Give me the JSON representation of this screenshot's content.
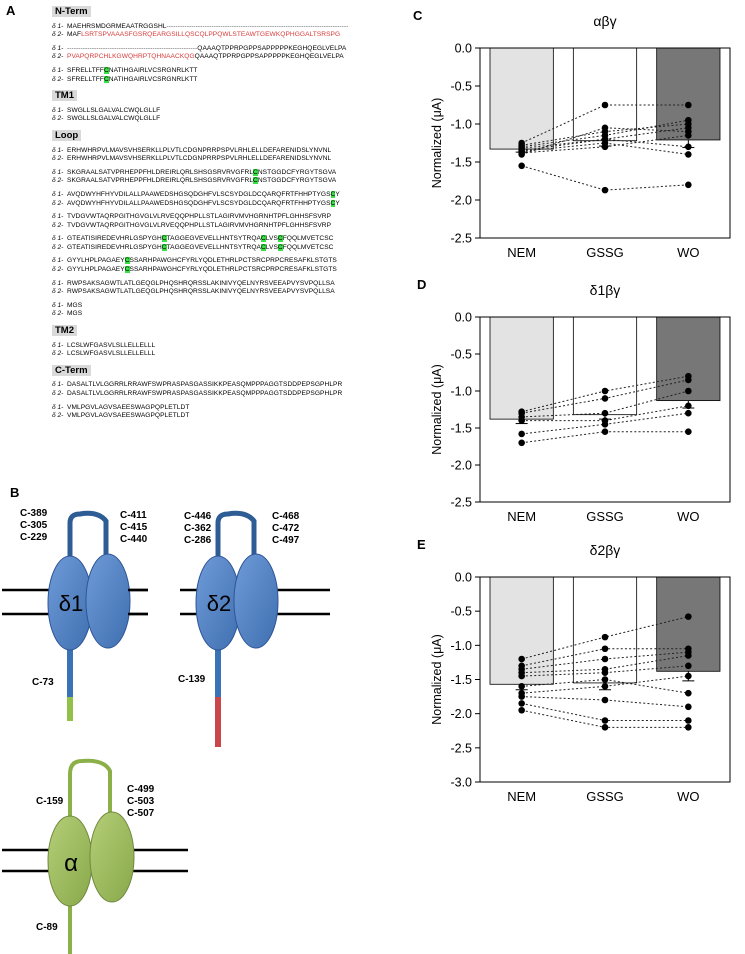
{
  "panels": {
    "a": "A",
    "b": "B",
    "c": "C",
    "d": "D",
    "e": "E"
  },
  "sequence": {
    "labels": {
      "d1": "δ 1-",
      "d2": "δ 2-"
    },
    "sections": [
      {
        "title": "N-Term",
        "blocks": [
          {
            "d1": [
              {
                "t": "MAEHRSMDGRMEAATRGGSHL"
              },
              {
                "t": "---------------------------------------------------------------------------------",
                "c": "dash"
              }
            ],
            "d2": [
              {
                "t": "MAF"
              },
              {
                "t": "LSRTSPVAAASFGSRQEARGSILLQSCQLPPQWLSTEAWTGEWKQPHGGALTSRSPG",
                "c": "red"
              }
            ]
          },
          {
            "d1": [
              {
                "t": "----------------------------------------------------------",
                "c": "dash"
              },
              {
                "t": "QAAAQTPPRPGPPSAPPPPPKEGHQEGLVELPA"
              }
            ],
            "d2": [
              {
                "t": "PVAPQRPCHLKGWQHRPTQHNAACKQG",
                "c": "red"
              },
              {
                "t": "QAAAQTPPRPGPPSAPPPPPKEGHQEGLVELPA"
              }
            ]
          },
          {
            "d1": [
              {
                "t": "SFRELLTFF"
              },
              {
                "t": "C",
                "c": "hl"
              },
              {
                "t": "NATIHGAIRLVCSRGNRLKTT"
              }
            ],
            "d2": [
              {
                "t": "SFRELLTFF"
              },
              {
                "t": "C",
                "c": "hl"
              },
              {
                "t": "NATIHGAIRLVCSRGNRLKTT"
              }
            ]
          }
        ]
      },
      {
        "title": "TM1",
        "blocks": [
          {
            "d1": [
              {
                "t": "SWGLLSLGALVALCWQLGLLF"
              }
            ],
            "d2": [
              {
                "t": "SWGLLSLGALVALCWQLGLLF"
              }
            ]
          }
        ]
      },
      {
        "title": "Loop",
        "blocks": [
          {
            "d1": [
              {
                "t": "ERHWHRPVLMAVSVHSERKLLPLVTLCDGNPRRPSPVLRHLELLDEFARENIDSLYNVNL"
              }
            ],
            "d2": [
              {
                "t": "ERHWHRPVLMAVSVHSERKLLPLVTLCDGNPRRPSPVLRHLELLDEFARENIDSLYNVNL"
              }
            ]
          },
          {
            "d1": [
              {
                "t": "SKGRAALSATVPRHEPPFHLDREIRLQRLSHSGSRVRVGFRL"
              },
              {
                "t": "C",
                "c": "hl"
              },
              {
                "t": "NSTGGDCFYRGYTSGVA"
              }
            ],
            "d2": [
              {
                "t": "SKGRAALSATVPRHEPPFHLDREIRLQRLSHSGSRVRVGFRL"
              },
              {
                "t": "C",
                "c": "hl"
              },
              {
                "t": "NSTGGDCFYRGYTSGVA"
              }
            ]
          },
          {
            "d1": [
              {
                "t": "AVQDWYHFHYVDILALLPAAWEDSHGSQDGHFVLSCSYDGLDCQARQFRTFHHPTYGS"
              },
              {
                "t": "C",
                "c": "hl"
              },
              {
                "t": "Y"
              }
            ],
            "d2": [
              {
                "t": "AVQDWYHFHYVDILALLPAAWEDSHGSQDGHFVLSCSYDGLDCQARQFRTFHHPTYGS"
              },
              {
                "t": "C",
                "c": "hl"
              },
              {
                "t": "Y"
              }
            ]
          },
          {
            "d1": [
              {
                "t": "TVDGVWTAQRPGITHGVGLVLRVEQQPHPLLSTLAGIRVMVHGRNHTPFLGHHSFSVRP"
              }
            ],
            "d2": [
              {
                "t": "TVDGVWTAQRPGITHGVGLVLRVEQQPHPLLSTLAGIRVMVHGRNHTPFLGHHSFSVRP"
              }
            ]
          },
          {
            "d1": [
              {
                "t": "GTEATISIREDEVHRLGSPYGH"
              },
              {
                "t": "C",
                "c": "hl"
              },
              {
                "t": "TAGGEGVEVELLHNTSYTRQA"
              },
              {
                "t": "C",
                "c": "hl"
              },
              {
                "t": "LVS"
              },
              {
                "t": "C",
                "c": "hl"
              },
              {
                "t": "FQQLMVETCSC"
              }
            ],
            "d2": [
              {
                "t": "GTEATISIREDEVHRLGSPYGH"
              },
              {
                "t": "C",
                "c": "hl"
              },
              {
                "t": "TAGGEGVEVELLHNTSYTRQA"
              },
              {
                "t": "C",
                "c": "hl"
              },
              {
                "t": "LVS"
              },
              {
                "t": "C",
                "c": "hl"
              },
              {
                "t": "FQQLMVETCSC"
              }
            ]
          },
          {
            "d1": [
              {
                "t": "GYYLHPLPAGAEY"
              },
              {
                "t": "C",
                "c": "hl"
              },
              {
                "t": "SSARHPAWGHCFYRLYQDLETHRLPCTSRCPRPCRESAFKLSTGTS"
              }
            ],
            "d2": [
              {
                "t": "GYYLHPLPAGAEY"
              },
              {
                "t": "C",
                "c": "hl"
              },
              {
                "t": "SSARHPAWGHCFYRLYQDLETHRLPCTSRCPRPCRESAFKLSTGTS"
              }
            ]
          },
          {
            "d1": [
              {
                "t": "RWPSAKSAGWTLATLGEQGLPHQSHRQRSSLAKINIVYQELNYRSVEEAPVYSVPQLLSA"
              }
            ],
            "d2": [
              {
                "t": "RWPSAKSAGWTLATLGEQGLPHQSHRQRSSLAKINIVYQELNYRSVEEAPVYSVPQLLSA"
              }
            ]
          },
          {
            "d1": [
              {
                "t": "MGS"
              }
            ],
            "d2": [
              {
                "t": "MGS"
              }
            ]
          }
        ]
      },
      {
        "title": "TM2",
        "blocks": [
          {
            "d1": [
              {
                "t": "LCSLWFGASVLSLLELLELLL"
              }
            ],
            "d2": [
              {
                "t": "LCSLWFGASVLSLLELLELLL"
              }
            ]
          }
        ]
      },
      {
        "title": "C-Term",
        "blocks": [
          {
            "d1": [
              {
                "t": "DASALTLVLGGRRLRRAWFSWPRASPASGASSIKKPEASQMPPPAGGTSDDPEPSGPHLPR"
              }
            ],
            "d2": [
              {
                "t": "DASALTLVLGGRRLRRAWFSWPRASPASGASSIKKPEASQMPPPAGGTSDDPEPSGPHLPR"
              }
            ]
          },
          {
            "d1": [
              {
                "t": "VMLPGVLAGVSAEESWAGPQPLETLDT"
              }
            ],
            "d2": [
              {
                "t": "VMLPGVLAGVSAEESWAGPQPLETLDT"
              }
            ]
          }
        ]
      }
    ]
  },
  "topology": {
    "delta1": {
      "symbol": "δ1",
      "left_labels": [
        "C-389",
        "C-305",
        "C-229"
      ],
      "right_labels": [
        "C-411",
        "C-415",
        "C-440"
      ],
      "nterm_label": "C-73"
    },
    "delta2": {
      "symbol": "δ2",
      "left_labels": [
        "C-446",
        "C-362",
        "C-286"
      ],
      "right_labels": [
        "C-468",
        "C-472",
        "C-497"
      ],
      "nterm_label": "C-139"
    },
    "alpha": {
      "symbol": "α",
      "left_labels": [
        "C-159"
      ],
      "right_labels": [
        "C-499",
        "C-503",
        "C-507"
      ],
      "nterm_label": "C-89"
    },
    "colors": {
      "delta_body": "#4f7fc0",
      "delta_edge": "#2f5597",
      "delta_loop": "#2e5c94",
      "delta_stem": "#3a72b8",
      "delta1_tail": "#92c14a",
      "delta2_tail": "#c9474a",
      "alpha_body": "#9bbb59",
      "alpha_edge": "#71893f",
      "alpha_loop": "#8cb048"
    }
  },
  "chart_data": [
    {
      "type": "bar",
      "title": "αβγ",
      "ylabel": "Normalized  (μA)",
      "categories": [
        "NEM",
        "GSSG",
        "WO"
      ],
      "values": [
        -1.33,
        -1.22,
        -1.21
      ],
      "errors": [
        0.04,
        0.07,
        0.1
      ],
      "bar_colors": [
        "#e3e3e3",
        "#ffffff",
        "#777777"
      ],
      "ylim": [
        -2.5,
        0.0
      ],
      "yticks": [
        "0.0",
        "-0.5",
        "-1.0",
        "-1.5",
        "-2.0",
        "-2.5"
      ],
      "individual_traces": [
        [
          -1.25,
          -0.75,
          -0.75
        ],
        [
          -1.28,
          -1.1,
          -1.0
        ],
        [
          -1.3,
          -1.15,
          -0.95
        ],
        [
          -1.32,
          -1.2,
          -1.05
        ],
        [
          -1.35,
          -1.2,
          -1.3
        ],
        [
          -1.36,
          -1.25,
          -1.4
        ],
        [
          -1.4,
          -1.05,
          -1.1
        ],
        [
          -1.38,
          -1.3,
          -1.15
        ],
        [
          -1.55,
          -1.87,
          -1.8
        ]
      ]
    },
    {
      "type": "bar",
      "title": "δ1βγ",
      "ylabel": "Normalized  (μA)",
      "categories": [
        "NEM",
        "GSSG",
        "WO"
      ],
      "values": [
        -1.38,
        -1.32,
        -1.13
      ],
      "errors": [
        0.06,
        0.06,
        0.1
      ],
      "bar_colors": [
        "#e3e3e3",
        "#ffffff",
        "#777777"
      ],
      "ylim": [
        -2.5,
        0.0
      ],
      "yticks": [
        "0.0",
        "-0.5",
        "-1.0",
        "-1.5",
        "-2.0",
        "-2.5"
      ],
      "individual_traces": [
        [
          -1.28,
          -1.0,
          -0.8
        ],
        [
          -1.3,
          -1.1,
          -0.85
        ],
        [
          -1.35,
          -1.3,
          -1.0
        ],
        [
          -1.4,
          -1.4,
          -1.2
        ],
        [
          -1.58,
          -1.45,
          -1.3
        ],
        [
          -1.7,
          -1.55,
          -1.55
        ]
      ]
    },
    {
      "type": "bar",
      "title": "δ2βγ",
      "ylabel": "Normalized  (μA)",
      "categories": [
        "NEM",
        "GSSG",
        "WO"
      ],
      "values": [
        -1.57,
        -1.55,
        -1.38
      ],
      "errors": [
        0.08,
        0.1,
        0.14
      ],
      "bar_colors": [
        "#e3e3e3",
        "#ffffff",
        "#777777"
      ],
      "ylim": [
        -3.0,
        0.0
      ],
      "yticks": [
        "0.0",
        "-0.5",
        "-1.0",
        "-1.5",
        "-2.0",
        "-2.5",
        "-3.0"
      ],
      "individual_traces": [
        [
          -1.2,
          -0.88,
          -0.58
        ],
        [
          -1.3,
          -1.05,
          -1.05
        ],
        [
          -1.35,
          -1.2,
          -1.1
        ],
        [
          -1.4,
          -1.35,
          -1.15
        ],
        [
          -1.45,
          -1.4,
          -1.3
        ],
        [
          -1.6,
          -1.5,
          -1.7
        ],
        [
          -1.7,
          -1.6,
          -1.45
        ],
        [
          -1.75,
          -1.8,
          -1.9
        ],
        [
          -1.85,
          -2.1,
          -2.1
        ],
        [
          -1.95,
          -2.2,
          -2.2
        ]
      ]
    }
  ]
}
